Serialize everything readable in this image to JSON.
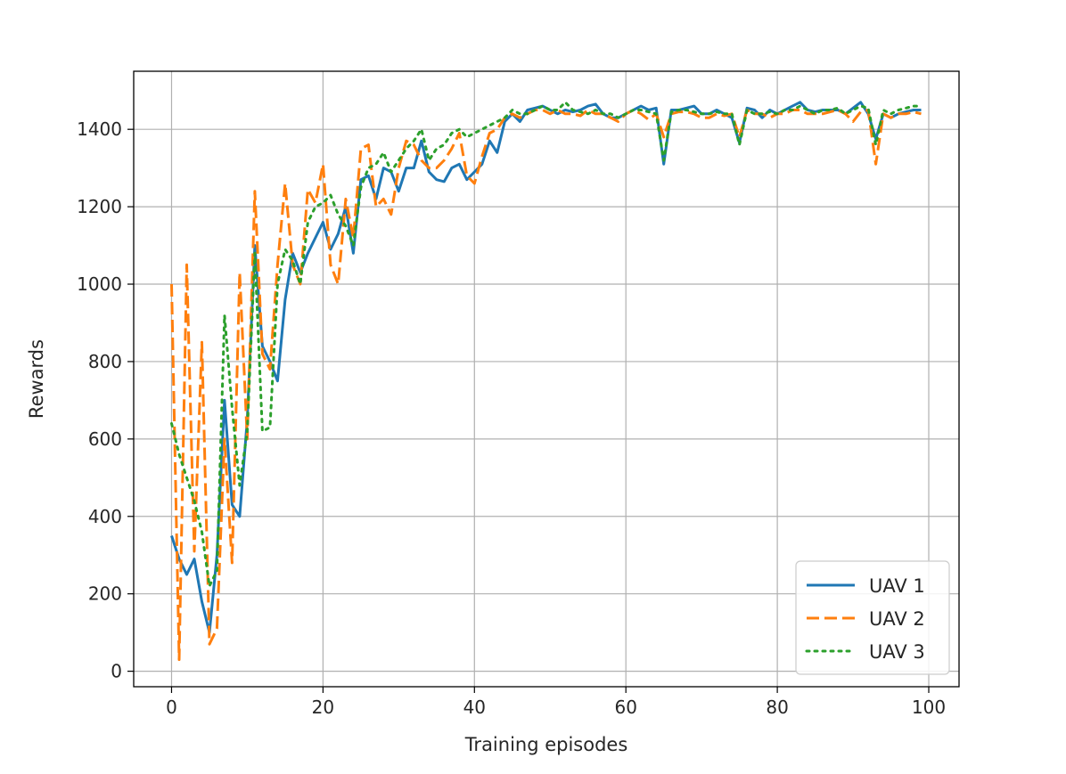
{
  "chart_data": {
    "type": "line",
    "xlabel": "Training episodes",
    "ylabel": "Rewards",
    "xlim": [
      -5,
      104
    ],
    "ylim": [
      -40,
      1550
    ],
    "xticks": [
      0,
      20,
      40,
      60,
      80,
      100
    ],
    "yticks": [
      0,
      200,
      400,
      600,
      800,
      1000,
      1200,
      1400
    ],
    "grid": true,
    "legend_position": "lower-right",
    "x": [
      0,
      1,
      2,
      3,
      4,
      5,
      6,
      7,
      8,
      9,
      10,
      11,
      12,
      13,
      14,
      15,
      16,
      17,
      18,
      19,
      20,
      21,
      22,
      23,
      24,
      25,
      26,
      27,
      28,
      29,
      30,
      31,
      32,
      33,
      34,
      35,
      36,
      37,
      38,
      39,
      40,
      41,
      42,
      43,
      44,
      45,
      46,
      47,
      48,
      49,
      50,
      51,
      52,
      53,
      54,
      55,
      56,
      57,
      58,
      59,
      60,
      61,
      62,
      63,
      64,
      65,
      66,
      67,
      68,
      69,
      70,
      71,
      72,
      73,
      74,
      75,
      76,
      77,
      78,
      79,
      80,
      81,
      82,
      83,
      84,
      85,
      86,
      87,
      88,
      89,
      90,
      91,
      92,
      93,
      94,
      95,
      96,
      97,
      98,
      99
    ],
    "series": [
      {
        "name": "UAV 1",
        "color": "#1f77b4",
        "style": "solid",
        "values": [
          350,
          290,
          250,
          290,
          180,
          100,
          300,
          700,
          430,
          400,
          650,
          1100,
          840,
          800,
          750,
          960,
          1080,
          1030,
          1080,
          1120,
          1160,
          1090,
          1130,
          1200,
          1080,
          1270,
          1280,
          1220,
          1300,
          1290,
          1240,
          1300,
          1300,
          1370,
          1290,
          1270,
          1265,
          1300,
          1310,
          1270,
          1290,
          1310,
          1370,
          1340,
          1420,
          1440,
          1420,
          1450,
          1455,
          1460,
          1450,
          1440,
          1450,
          1445,
          1450,
          1460,
          1465,
          1440,
          1430,
          1430,
          1440,
          1450,
          1460,
          1450,
          1455,
          1310,
          1450,
          1450,
          1455,
          1460,
          1440,
          1440,
          1450,
          1440,
          1430,
          1365,
          1455,
          1450,
          1430,
          1450,
          1440,
          1450,
          1460,
          1470,
          1450,
          1445,
          1450,
          1450,
          1450,
          1440,
          1455,
          1470,
          1440,
          1375,
          1440,
          1430,
          1440,
          1445,
          1450,
          1450
        ]
      },
      {
        "name": "UAV 2",
        "color": "#ff7f0e",
        "style": "dashed",
        "values": [
          1000,
          30,
          1050,
          310,
          850,
          70,
          110,
          600,
          280,
          1030,
          600,
          1240,
          820,
          780,
          1050,
          1260,
          1050,
          1000,
          1245,
          1210,
          1310,
          1050,
          1000,
          1220,
          1120,
          1350,
          1360,
          1200,
          1220,
          1180,
          1300,
          1370,
          1360,
          1320,
          1300,
          1300,
          1320,
          1350,
          1390,
          1280,
          1260,
          1330,
          1390,
          1400,
          1430,
          1440,
          1430,
          1440,
          1450,
          1450,
          1440,
          1450,
          1440,
          1440,
          1435,
          1450,
          1440,
          1440,
          1430,
          1420,
          1440,
          1450,
          1440,
          1425,
          1440,
          1380,
          1440,
          1445,
          1445,
          1440,
          1430,
          1430,
          1440,
          1435,
          1440,
          1380,
          1450,
          1440,
          1440,
          1430,
          1440,
          1440,
          1450,
          1450,
          1440,
          1440,
          1440,
          1445,
          1450,
          1440,
          1420,
          1445,
          1450,
          1310,
          1440,
          1430,
          1440,
          1440,
          1445,
          1440
        ]
      },
      {
        "name": "UAV 3",
        "color": "#2ca02c",
        "style": "dotted",
        "values": [
          640,
          560,
          500,
          440,
          360,
          220,
          260,
          920,
          680,
          480,
          620,
          1080,
          620,
          630,
          1000,
          1090,
          1060,
          1000,
          1160,
          1200,
          1210,
          1230,
          1180,
          1150,
          1100,
          1250,
          1300,
          1310,
          1340,
          1290,
          1320,
          1350,
          1370,
          1400,
          1320,
          1350,
          1360,
          1390,
          1400,
          1380,
          1390,
          1400,
          1410,
          1420,
          1430,
          1450,
          1440,
          1440,
          1450,
          1460,
          1450,
          1450,
          1470,
          1450,
          1445,
          1440,
          1450,
          1440,
          1440,
          1430,
          1440,
          1450,
          1450,
          1445,
          1440,
          1320,
          1445,
          1450,
          1450,
          1445,
          1440,
          1440,
          1445,
          1440,
          1440,
          1360,
          1450,
          1440,
          1440,
          1445,
          1440,
          1450,
          1450,
          1460,
          1450,
          1440,
          1450,
          1450,
          1455,
          1440,
          1450,
          1460,
          1455,
          1360,
          1450,
          1440,
          1450,
          1455,
          1460,
          1460
        ]
      }
    ]
  }
}
